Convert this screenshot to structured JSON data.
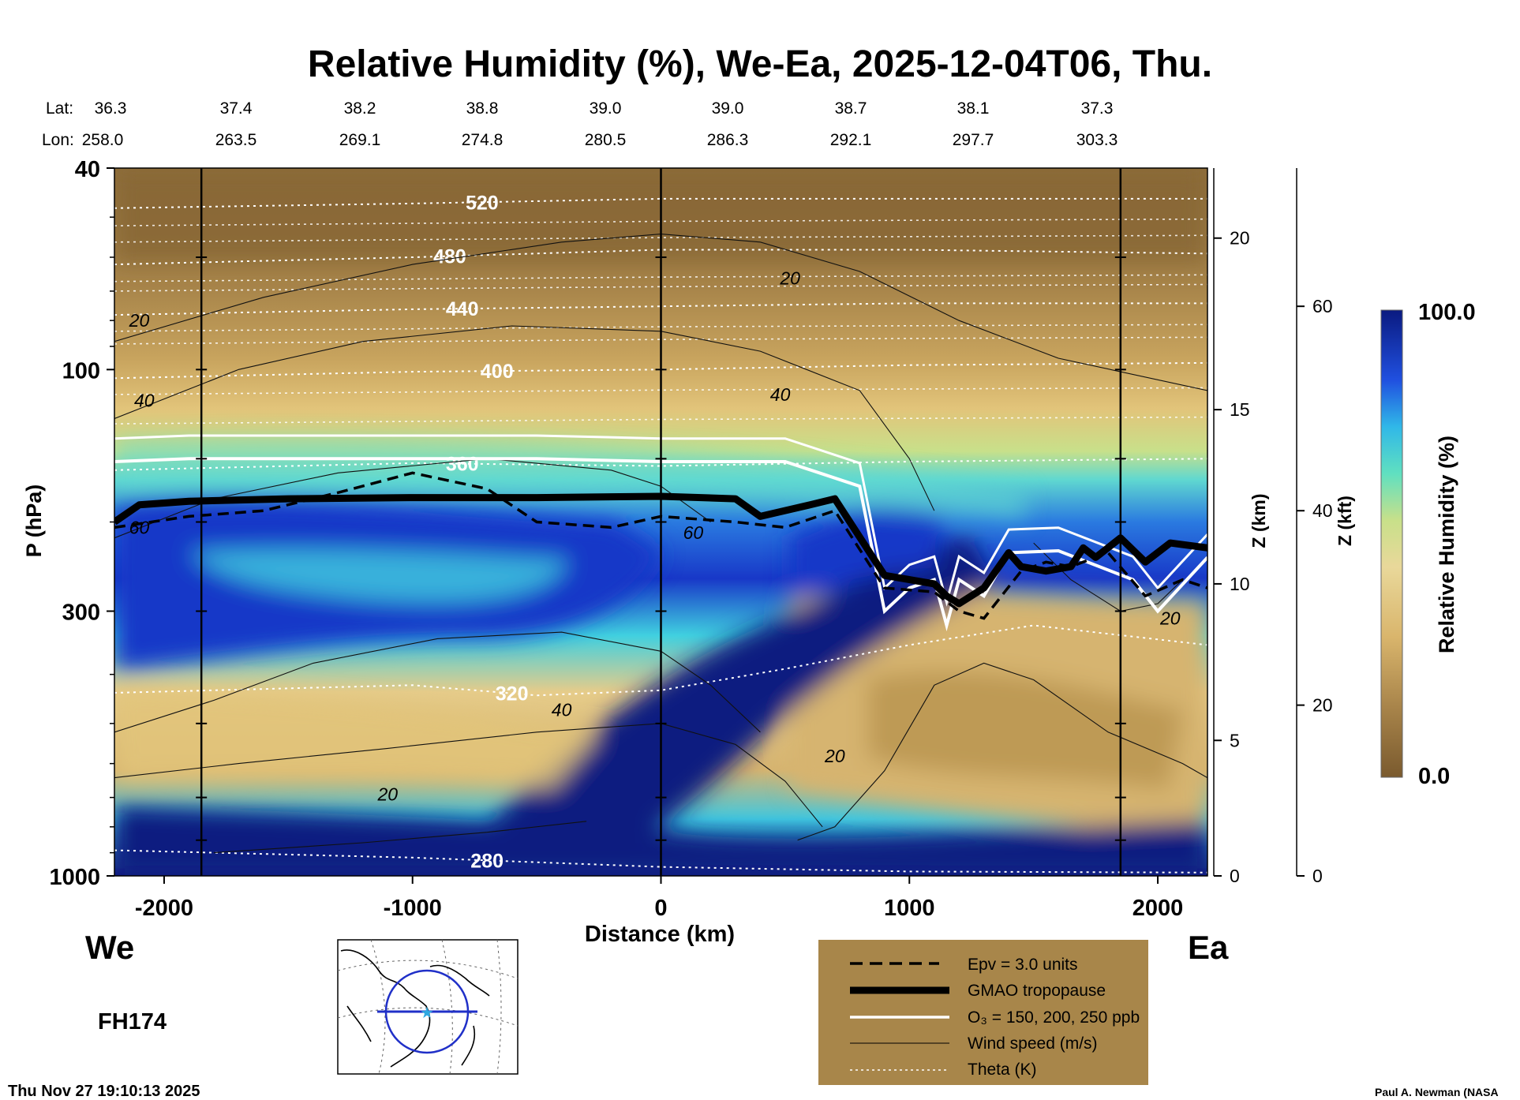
{
  "title": "Relative Humidity (%), We-Ea, 2025-12-04T06, Thu.",
  "lat_label": "Lat:",
  "lon_label": "Lon:",
  "lats": [
    "36.3",
    "37.4",
    "38.2",
    "38.8",
    "39.0",
    "39.0",
    "38.7",
    "38.1",
    "37.3"
  ],
  "lons": [
    "258.0",
    "263.5",
    "269.1",
    "274.8",
    "280.5",
    "286.3",
    "292.1",
    "297.7",
    "303.3"
  ],
  "left_dir": "We",
  "right_dir": "Ea",
  "forecast_hour": "FH174",
  "timestamp": "Thu Nov 27 19:10:13 2025",
  "credit": "Paul A. Newman (NASA",
  "legend": {
    "epv": "Epv = 3.0 units",
    "tropopause": "GMAO tropopause",
    "o3": "O₃ = 150, 200, 250 ppb",
    "wind": "Wind speed (m/s)",
    "theta": "Theta (K)"
  },
  "colorbar": {
    "max_label": "100.0",
    "min_label": "0.0",
    "label": "Relative Humidity (%)"
  },
  "colors": {
    "dry": "#8a6a3a",
    "tan": "#d9b56c",
    "light": "#c8e08a",
    "cyan": "#40d0e0",
    "blue": "#1840d0",
    "navy": "#0a1a80",
    "legend_bg": "#a8864a"
  },
  "chart_data": {
    "type": "heatmap",
    "title": "Relative Humidity (%), We-Ea, 2025-12-04T06, Thu.",
    "xlabel": "Distance (km)",
    "ylabel": "P (hPa)",
    "y2label": "Z (km)",
    "y3label": "Z (kft)",
    "xlim": [
      -2200,
      2200
    ],
    "ylim": [
      1000,
      40
    ],
    "yscale": "log",
    "x_ticks": [
      -2000,
      -1000,
      0,
      1000,
      2000
    ],
    "x_tick_labels": [
      "-2000",
      "-1000",
      "0",
      "1000",
      "2000"
    ],
    "p_ticks": [
      40,
      100,
      300,
      1000
    ],
    "p_tick_labels": [
      "40",
      "100",
      "300",
      "1000"
    ],
    "z_km_ticks": [
      {
        "z": 0,
        "p": 1000
      },
      {
        "z": 5,
        "p": 540
      },
      {
        "z": 10,
        "p": 265
      },
      {
        "z": 15,
        "p": 120
      },
      {
        "z": 20,
        "p": 55
      }
    ],
    "z_km_labels": [
      "0",
      "5",
      "10",
      "15",
      "20"
    ],
    "z_kft_ticks": [
      {
        "z": 0,
        "p": 1000
      },
      {
        "z": 20,
        "p": 460
      },
      {
        "z": 40,
        "p": 190
      },
      {
        "z": 60,
        "p": 75
      }
    ],
    "z_kft_labels": [
      "0",
      "20",
      "40",
      "60"
    ],
    "vertical_lines_km": [
      -1850,
      0,
      1850
    ],
    "colorbar_range": [
      0,
      100
    ],
    "theta_levels": [
      {
        "label": "280",
        "x": [
          -2200,
          -1000,
          0,
          1000,
          2200
        ],
        "p": [
          890,
          920,
          960,
          980,
          985
        ],
        "label_x": -700
      },
      {
        "label": "320",
        "x": [
          -2200,
          -1000,
          -500,
          0,
          500,
          1000,
          1500,
          2200
        ],
        "p": [
          435,
          420,
          440,
          430,
          390,
          350,
          320,
          350
        ],
        "label_x": -600
      },
      {
        "label": "360",
        "x": [
          -2200,
          -1000,
          0,
          1000,
          2200
        ],
        "p": [
          158,
          153,
          155,
          152,
          150
        ],
        "label_x": -800
      },
      {
        "label": "400",
        "x": [
          -2200,
          -1000,
          0,
          1000,
          2200
        ],
        "p": [
          104,
          101,
          100,
          98,
          97
        ],
        "label_x": -660
      },
      {
        "label": "440",
        "x": [
          -2200,
          -1000,
          0,
          1000,
          2200
        ],
        "p": [
          78,
          76,
          75,
          74,
          74
        ],
        "label_x": -800
      },
      {
        "label": "480",
        "x": [
          -2200,
          -1000,
          0,
          1000,
          2200
        ],
        "p": [
          62,
          60,
          58,
          58,
          59
        ],
        "label_x": -850
      },
      {
        "label": "520",
        "x": [
          -2200,
          -1000,
          0,
          1000,
          2200
        ],
        "p": [
          48,
          47,
          46,
          46,
          46
        ],
        "label_x": -720
      }
    ],
    "wind_labels": [
      {
        "label": "20",
        "x": -2100,
        "p": 80
      },
      {
        "label": "40",
        "x": -2080,
        "p": 115
      },
      {
        "label": "60",
        "x": -2100,
        "p": 205
      },
      {
        "label": "20",
        "x": 520,
        "p": 66
      },
      {
        "label": "40",
        "x": 480,
        "p": 112
      },
      {
        "label": "60",
        "x": 130,
        "p": 210
      },
      {
        "label": "40",
        "x": -400,
        "p": 470
      },
      {
        "label": "20",
        "x": -1100,
        "p": 690
      },
      {
        "label": "20",
        "x": 700,
        "p": 580
      },
      {
        "label": "20",
        "x": 2050,
        "p": 310
      }
    ],
    "tropopause": {
      "x": [
        -2200,
        -2100,
        -1900,
        -1500,
        -1000,
        -500,
        0,
        300,
        400,
        600,
        700,
        900,
        1100,
        1150,
        1200,
        1300,
        1400,
        1450,
        1550,
        1650,
        1700,
        1750,
        1850,
        1950,
        2050,
        2200
      ],
      "p": [
        200,
        185,
        182,
        180,
        179,
        179,
        178,
        180,
        195,
        185,
        180,
        255,
        265,
        280,
        290,
        270,
        230,
        245,
        250,
        245,
        225,
        235,
        215,
        240,
        220,
        225
      ]
    },
    "epv": {
      "x": [
        -2200,
        -1900,
        -1600,
        -1300,
        -1000,
        -700,
        -500,
        -200,
        0,
        300,
        500,
        700,
        900,
        1100,
        1200,
        1300,
        1450,
        1550,
        1650,
        1800,
        1950,
        2100,
        2200
      ],
      "p": [
        205,
        195,
        190,
        175,
        160,
        172,
        200,
        205,
        195,
        200,
        205,
        190,
        270,
        275,
        300,
        310,
        250,
        240,
        245,
        230,
        280,
        260,
        270
      ]
    },
    "ozone": {
      "x": [
        -2200,
        -1900,
        -1500,
        -1000,
        -500,
        0,
        500,
        800,
        900,
        1000,
        1100,
        1150,
        1200,
        1300,
        1400,
        1600,
        1900,
        2000,
        2200
      ],
      "p": [
        152,
        150,
        150,
        150,
        150,
        152,
        152,
        170,
        300,
        270,
        260,
        320,
        260,
        280,
        230,
        228,
        260,
        300,
        235
      ]
    }
  }
}
